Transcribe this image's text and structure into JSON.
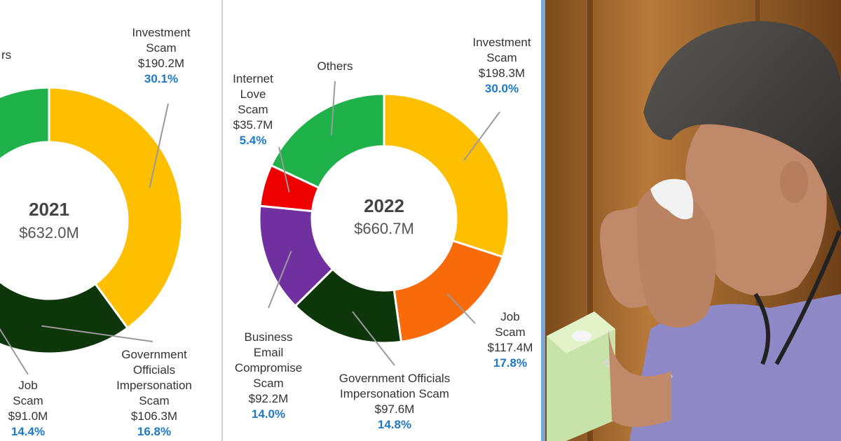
{
  "colors": {
    "investment": "#FDBF00",
    "job": "#F96A0B",
    "government": "#0D360B",
    "business_email": "#7030A0",
    "internet_love": "#EE0000",
    "others": "#1FB24A",
    "percent_text": "#1F78C8"
  },
  "chart_data": [
    {
      "type": "pie",
      "donut": true,
      "center": {
        "year": "2021",
        "total": "$632.0M"
      },
      "slices": [
        {
          "id": "investment",
          "label_lines": [
            "Investment",
            "Scam"
          ],
          "amount": "$190.2M",
          "percent": "30.1%",
          "value": 30.1,
          "color_key": "investment"
        },
        {
          "id": "government",
          "label_lines": [
            "Government",
            "Officials",
            "Impersonation",
            "Scam"
          ],
          "amount": "$106.3M",
          "percent": "16.8%",
          "value": 16.8,
          "color_key": "government"
        },
        {
          "id": "job",
          "label_lines": [
            "Job",
            "Scam"
          ],
          "amount": "$91.0M",
          "percent": "14.4%",
          "value": 14.4,
          "color_key": "job"
        },
        {
          "id": "others",
          "label_lines": [
            "rs"
          ],
          "amount": "",
          "percent": "",
          "value": 14.0,
          "color_key": "others"
        }
      ]
    },
    {
      "type": "pie",
      "donut": true,
      "center": {
        "year": "2022",
        "total": "$660.7M"
      },
      "slices": [
        {
          "id": "investment",
          "label_lines": [
            "Investment",
            "Scam"
          ],
          "amount": "$198.3M",
          "percent": "30.0%",
          "value": 30.0,
          "color_key": "investment"
        },
        {
          "id": "job",
          "label_lines": [
            "Job",
            "Scam"
          ],
          "amount": "$117.4M",
          "percent": "17.8%",
          "value": 17.8,
          "color_key": "job"
        },
        {
          "id": "government",
          "label_lines": [
            "Government Officials",
            "Impersonation Scam"
          ],
          "amount": "$97.6M",
          "percent": "14.8%",
          "value": 14.8,
          "color_key": "government"
        },
        {
          "id": "business_email",
          "label_lines": [
            "Business",
            "Email",
            "Compromise",
            "Scam"
          ],
          "amount": "$92.2M",
          "percent": "14.0%",
          "value": 14.0,
          "color_key": "business_email"
        },
        {
          "id": "internet_love",
          "label_lines": [
            "Internet",
            "Love",
            "Scam"
          ],
          "amount": "$35.7M",
          "percent": "5.4%",
          "value": 5.4,
          "color_key": "internet_love"
        },
        {
          "id": "others",
          "label_lines": [
            "Others"
          ],
          "amount": "",
          "percent": "",
          "value": 18.0,
          "color_key": "others"
        }
      ]
    }
  ],
  "photo": {
    "subject": "woman wiping tears with a tissue",
    "icons": [
      "tissue-box-icon"
    ]
  }
}
